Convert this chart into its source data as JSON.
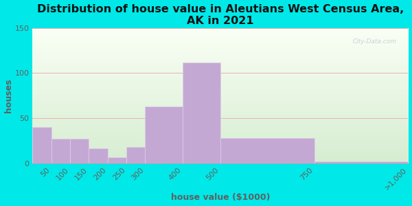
{
  "title": "Distribution of house value in Aleutians West Census Area,\nAK in 2021",
  "xlabel": "house value ($1000)",
  "ylabel": "houses",
  "bar_values": [
    40,
    27,
    27,
    17,
    7,
    18,
    63,
    112,
    28,
    2
  ],
  "bar_lefts": [
    0,
    50,
    100,
    150,
    200,
    250,
    300,
    400,
    500,
    750
  ],
  "bar_widths": [
    50,
    50,
    50,
    50,
    50,
    50,
    100,
    100,
    250,
    250
  ],
  "bar_color": "#c4a8d4",
  "bar_edgecolor": "#e0d0e8",
  "ylim": [
    0,
    150
  ],
  "yticks": [
    0,
    50,
    100,
    150
  ],
  "xtick_positions": [
    50,
    100,
    150,
    200,
    250,
    300,
    400,
    500,
    750,
    1000
  ],
  "xtick_labels": [
    "50",
    "100",
    "150",
    "200",
    "250",
    "300",
    "400",
    "500",
    "750",
    ">1,000"
  ],
  "xlim": [
    0,
    1000
  ],
  "background_outer": "#00e8e8",
  "plot_bg_color_top_left": "#f4faf0",
  "plot_bg_color_bottom_right": "#d8edd8",
  "grid_color": "#e8b0b0",
  "watermark": "City-Data.com",
  "title_fontsize": 11.5,
  "axis_label_fontsize": 9,
  "tick_fontsize": 8,
  "tick_color": "#606060",
  "title_color": "#111111"
}
